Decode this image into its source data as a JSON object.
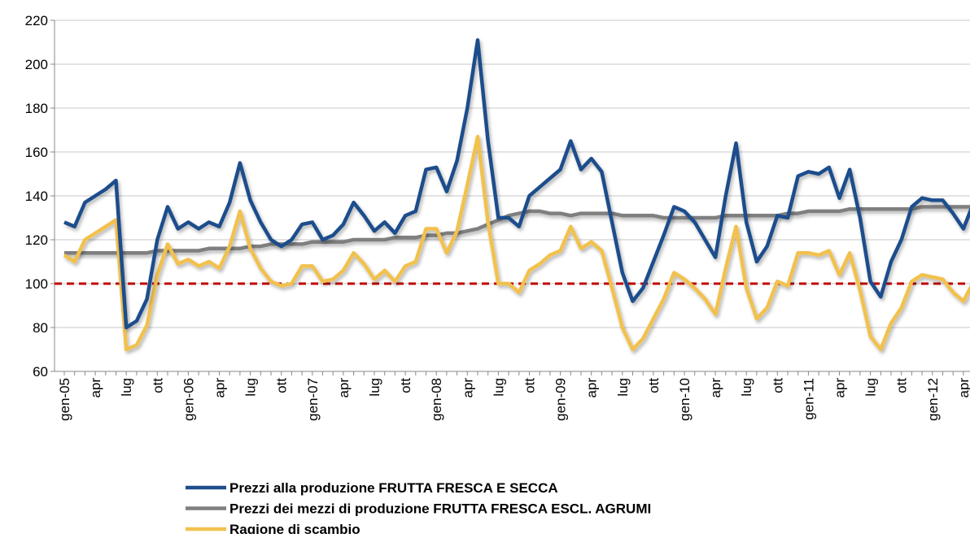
{
  "chart_data": {
    "type": "line",
    "categories": [
      "gen-05",
      null,
      null,
      "apr",
      null,
      null,
      "lug",
      null,
      null,
      "ott",
      null,
      null,
      "gen-06",
      null,
      null,
      "apr",
      null,
      null,
      "lug",
      null,
      null,
      "ott",
      null,
      null,
      "gen-07",
      null,
      null,
      "apr",
      null,
      null,
      "lug",
      null,
      null,
      "ott",
      null,
      null,
      "gen-08",
      null,
      null,
      "apr",
      null,
      null,
      "lug",
      null,
      null,
      "ott",
      null,
      null,
      "gen-09",
      null,
      null,
      "apr",
      null,
      null,
      "lug",
      null,
      null,
      "ott",
      null,
      null,
      "gen-10",
      null,
      null,
      "apr",
      null,
      null,
      "lug",
      null,
      null,
      "ott",
      null,
      null,
      "gen-11",
      null,
      null,
      "apr",
      null,
      null,
      "lug",
      null,
      null,
      "ott",
      null,
      null,
      "gen-12",
      null,
      null,
      "apr",
      null
    ],
    "series": [
      {
        "name": "Prezzi alla produzione FRUTTA FRESCA E SECCA",
        "color": "#1f4e8c",
        "values": [
          128,
          126,
          137,
          140,
          143,
          147,
          80,
          83,
          93,
          120,
          135,
          125,
          128,
          125,
          128,
          126,
          137,
          155,
          138,
          128,
          120,
          117,
          120,
          127,
          128,
          120,
          122,
          127,
          137,
          131,
          124,
          128,
          123,
          131,
          133,
          152,
          153,
          142,
          156,
          180,
          211,
          165,
          130,
          130,
          126,
          140,
          144,
          148,
          152,
          165,
          152,
          157,
          151,
          128,
          105,
          92,
          98,
          110,
          122,
          135,
          133,
          128,
          120,
          112,
          140,
          164,
          128,
          110,
          117,
          131,
          130,
          149,
          151,
          150,
          153,
          139,
          152,
          130,
          101,
          94,
          110,
          120,
          135,
          139,
          138,
          138,
          132,
          125,
          137
        ]
      },
      {
        "name": "Prezzi dei mezzi di produzione FRUTTA FRESCA ESCL. AGRUMI",
        "color": "#7f7f7f",
        "values": [
          114,
          114,
          114,
          114,
          114,
          114,
          114,
          114,
          114,
          115,
          115,
          115,
          115,
          115,
          116,
          116,
          116,
          116,
          117,
          117,
          118,
          118,
          118,
          118,
          119,
          119,
          119,
          119,
          120,
          120,
          120,
          120,
          121,
          121,
          121,
          122,
          122,
          123,
          123,
          124,
          125,
          127,
          129,
          131,
          132,
          133,
          133,
          132,
          132,
          131,
          132,
          132,
          132,
          132,
          131,
          131,
          131,
          131,
          130,
          130,
          130,
          130,
          130,
          130,
          131,
          131,
          131,
          131,
          131,
          131,
          132,
          132,
          133,
          133,
          133,
          133,
          134,
          134,
          134,
          134,
          134,
          134,
          134,
          135,
          135,
          135,
          135,
          135,
          135
        ]
      },
      {
        "name": "Ragione di scambio",
        "color": "#f2c14e",
        "values": [
          113,
          110,
          120,
          123,
          126,
          129,
          70,
          72,
          81,
          104,
          118,
          109,
          111,
          108,
          110,
          107,
          117,
          133,
          116,
          107,
          101,
          99,
          100,
          108,
          108,
          101,
          102,
          106,
          114,
          109,
          102,
          106,
          101,
          108,
          110,
          125,
          125,
          114,
          124,
          145,
          167,
          128,
          100,
          100,
          96,
          106,
          109,
          113,
          115,
          126,
          116,
          119,
          115,
          98,
          80,
          70,
          75,
          84,
          93,
          105,
          102,
          98,
          93,
          86,
          107,
          126,
          98,
          84,
          89,
          101,
          99,
          114,
          114,
          113,
          115,
          104,
          114,
          97,
          76,
          70,
          82,
          89,
          101,
          104,
          103,
          102,
          96,
          92,
          101
        ]
      }
    ],
    "reference_line": {
      "value": 100,
      "color": "#c00000"
    },
    "ylim": [
      60,
      220
    ],
    "yticks": [
      60,
      80,
      100,
      120,
      140,
      160,
      180,
      200,
      220
    ],
    "grid": true,
    "legend": "bottom"
  }
}
